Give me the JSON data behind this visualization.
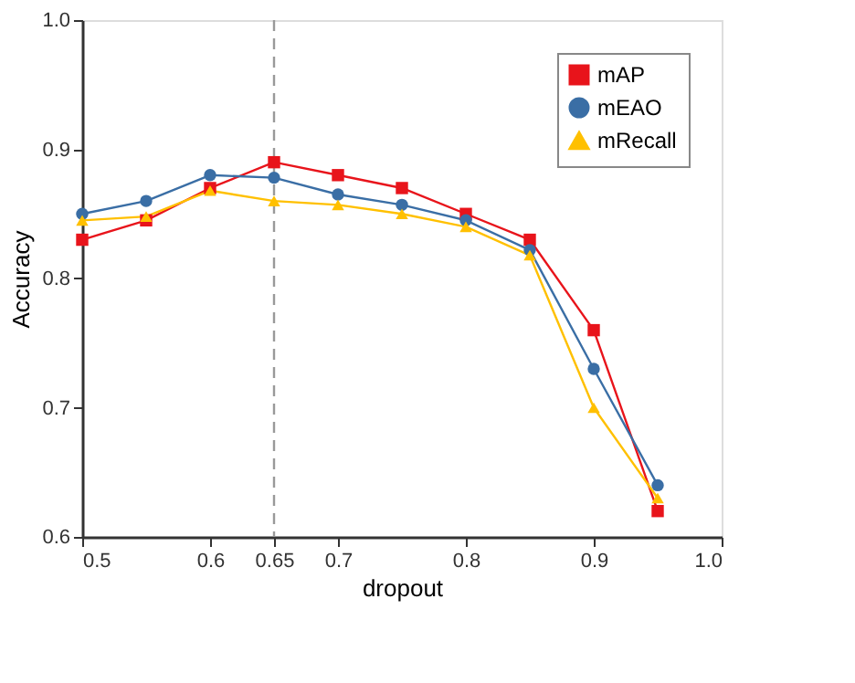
{
  "chart_data": {
    "type": "line",
    "xlabel": "dropout",
    "ylabel": "Accuracy",
    "x": [
      0.5,
      0.55,
      0.6,
      0.65,
      0.7,
      0.75,
      0.8,
      0.85,
      0.9,
      0.95
    ],
    "series": [
      {
        "name": "mAP",
        "color": "#e8141b",
        "marker": "square",
        "values": [
          0.83,
          0.845,
          0.87,
          0.89,
          0.88,
          0.87,
          0.85,
          0.83,
          0.76,
          0.62
        ]
      },
      {
        "name": "mEAO",
        "color": "#3a6ea5",
        "marker": "circle",
        "values": [
          0.85,
          0.86,
          0.88,
          0.878,
          0.865,
          0.857,
          0.845,
          0.822,
          0.73,
          0.64
        ]
      },
      {
        "name": "mRecall",
        "color": "#ffc000",
        "marker": "triangle",
        "values": [
          0.845,
          0.848,
          0.868,
          0.86,
          0.857,
          0.85,
          0.84,
          0.818,
          0.7,
          0.63
        ]
      }
    ],
    "xlim": [
      0.5,
      1.0
    ],
    "xticks": [
      0.5,
      0.6,
      0.65,
      0.7,
      0.8,
      0.9,
      {
        "value": 1,
        "label": "1.0"
      }
    ],
    "ylim": [
      0.6,
      1.0
    ],
    "yticks": [
      0.6,
      0.7,
      0.8,
      0.9,
      {
        "value": 1,
        "label": "1.0"
      }
    ],
    "ref_lines": [
      {
        "axis": "x",
        "value": 0.65,
        "color": "#999999",
        "line_style": "dashed"
      }
    ],
    "grid": false,
    "legend": "top right",
    "line_style": "solid"
  }
}
